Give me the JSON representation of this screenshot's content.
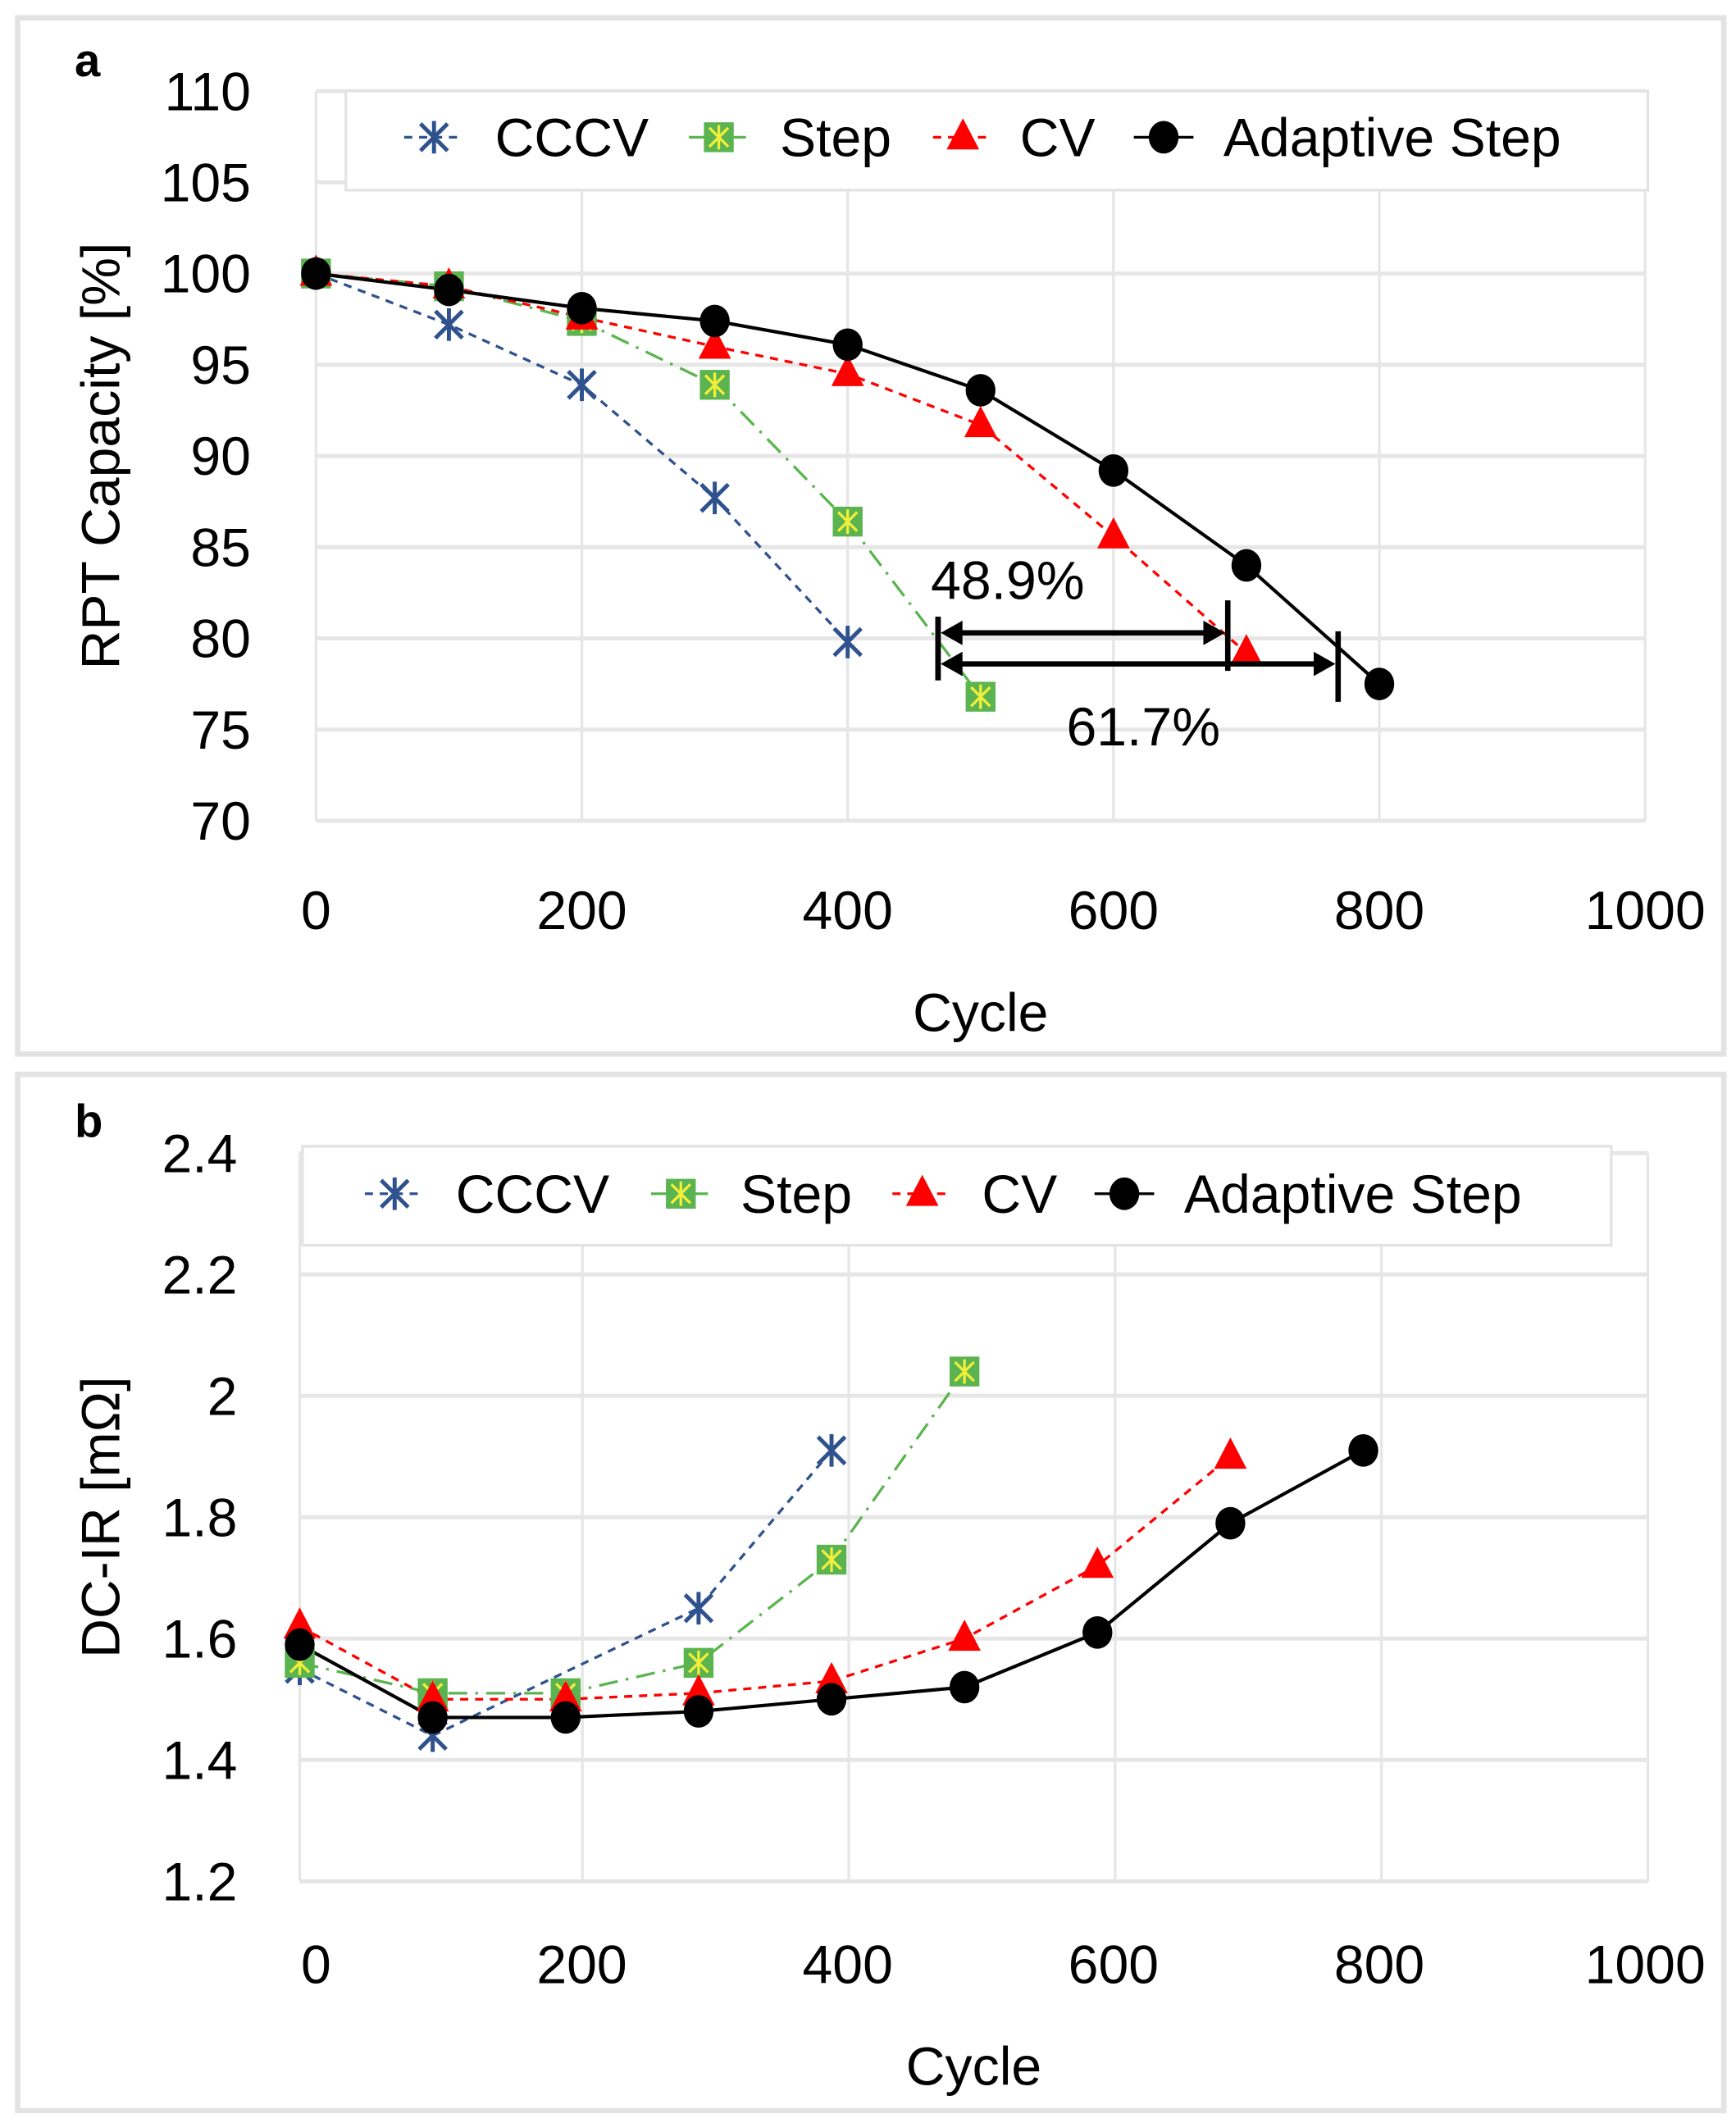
{
  "chart_data": [
    {
      "panel_label": "a",
      "type": "line",
      "xlabel": "Cycle",
      "ylabel": "RPT Capacity [%]",
      "xlim": [
        0,
        1000
      ],
      "ylim": [
        70,
        110
      ],
      "xticks": [
        "0",
        "200",
        "400",
        "600",
        "800",
        "1000"
      ],
      "yticks": [
        "70",
        "75",
        "80",
        "85",
        "90",
        "95",
        "100",
        "105",
        "110"
      ],
      "grid": true,
      "legend": "top",
      "series": [
        {
          "name": "CCCV",
          "color": "#2F528F",
          "marker": "asterisk",
          "x": [
            0,
            100,
            200,
            300,
            400
          ],
          "y": [
            100,
            97.2,
            93.9,
            87.7,
            79.8
          ]
        },
        {
          "name": "Step",
          "color": "#5BB450",
          "marker": "square-asterisk",
          "x": [
            0,
            100,
            200,
            300,
            400,
            500
          ],
          "y": [
            100,
            99.3,
            97.4,
            93.9,
            86.4,
            76.8
          ]
        },
        {
          "name": "CV",
          "color": "#FF0000",
          "marker": "triangle",
          "x": [
            0,
            100,
            200,
            300,
            400,
            500,
            600,
            700
          ],
          "y": [
            100,
            99.3,
            97.6,
            96.0,
            94.5,
            91.7,
            85.6,
            79.2
          ]
        },
        {
          "name": "Adaptive Step",
          "color": "#000000",
          "marker": "circle",
          "x": [
            0,
            100,
            200,
            300,
            400,
            500,
            600,
            700,
            800
          ],
          "y": [
            100,
            99.1,
            98.1,
            97.4,
            96.1,
            93.6,
            89.2,
            84.0,
            77.5
          ]
        }
      ],
      "annotations": [
        {
          "text": "48.9%",
          "x_start": 468,
          "x_end": 686,
          "y": 80.3
        },
        {
          "text": "61.7%",
          "x_start": 468,
          "x_end": 769,
          "y": 78.6
        }
      ]
    },
    {
      "panel_label": "b",
      "type": "line",
      "xlabel": "Cycle",
      "ylabel": "DC-IR [mΩ]",
      "xlim": [
        -14,
        1000
      ],
      "ylim": [
        1.2,
        2.4
      ],
      "xticks": [
        "0",
        "200",
        "400",
        "600",
        "800",
        "1000"
      ],
      "yticks": [
        "1.2",
        "1.4",
        "1.6",
        "1.8",
        "2",
        "2.2",
        "2.4"
      ],
      "grid": true,
      "legend": "top",
      "series": [
        {
          "name": "CCCV",
          "color": "#2F528F",
          "marker": "asterisk",
          "x": [
            -14,
            86,
            286,
            386
          ],
          "y": [
            1.55,
            1.44,
            1.65,
            1.91
          ]
        },
        {
          "name": "Step",
          "color": "#5BB450",
          "marker": "square-asterisk",
          "x": [
            -14,
            86,
            186,
            286,
            386,
            486
          ],
          "y": [
            1.56,
            1.51,
            1.51,
            1.56,
            1.73,
            2.04
          ]
        },
        {
          "name": "CV",
          "color": "#FF0000",
          "marker": "triangle",
          "x": [
            -14,
            86,
            186,
            286,
            386,
            486,
            586,
            686
          ],
          "y": [
            1.62,
            1.5,
            1.5,
            1.51,
            1.53,
            1.6,
            1.72,
            1.9
          ]
        },
        {
          "name": "Adaptive Step",
          "color": "#000000",
          "marker": "circle",
          "x": [
            -14,
            86,
            186,
            286,
            386,
            486,
            586,
            686,
            786
          ],
          "y": [
            1.59,
            1.47,
            1.47,
            1.48,
            1.5,
            1.52,
            1.61,
            1.79,
            1.91
          ]
        }
      ]
    }
  ]
}
